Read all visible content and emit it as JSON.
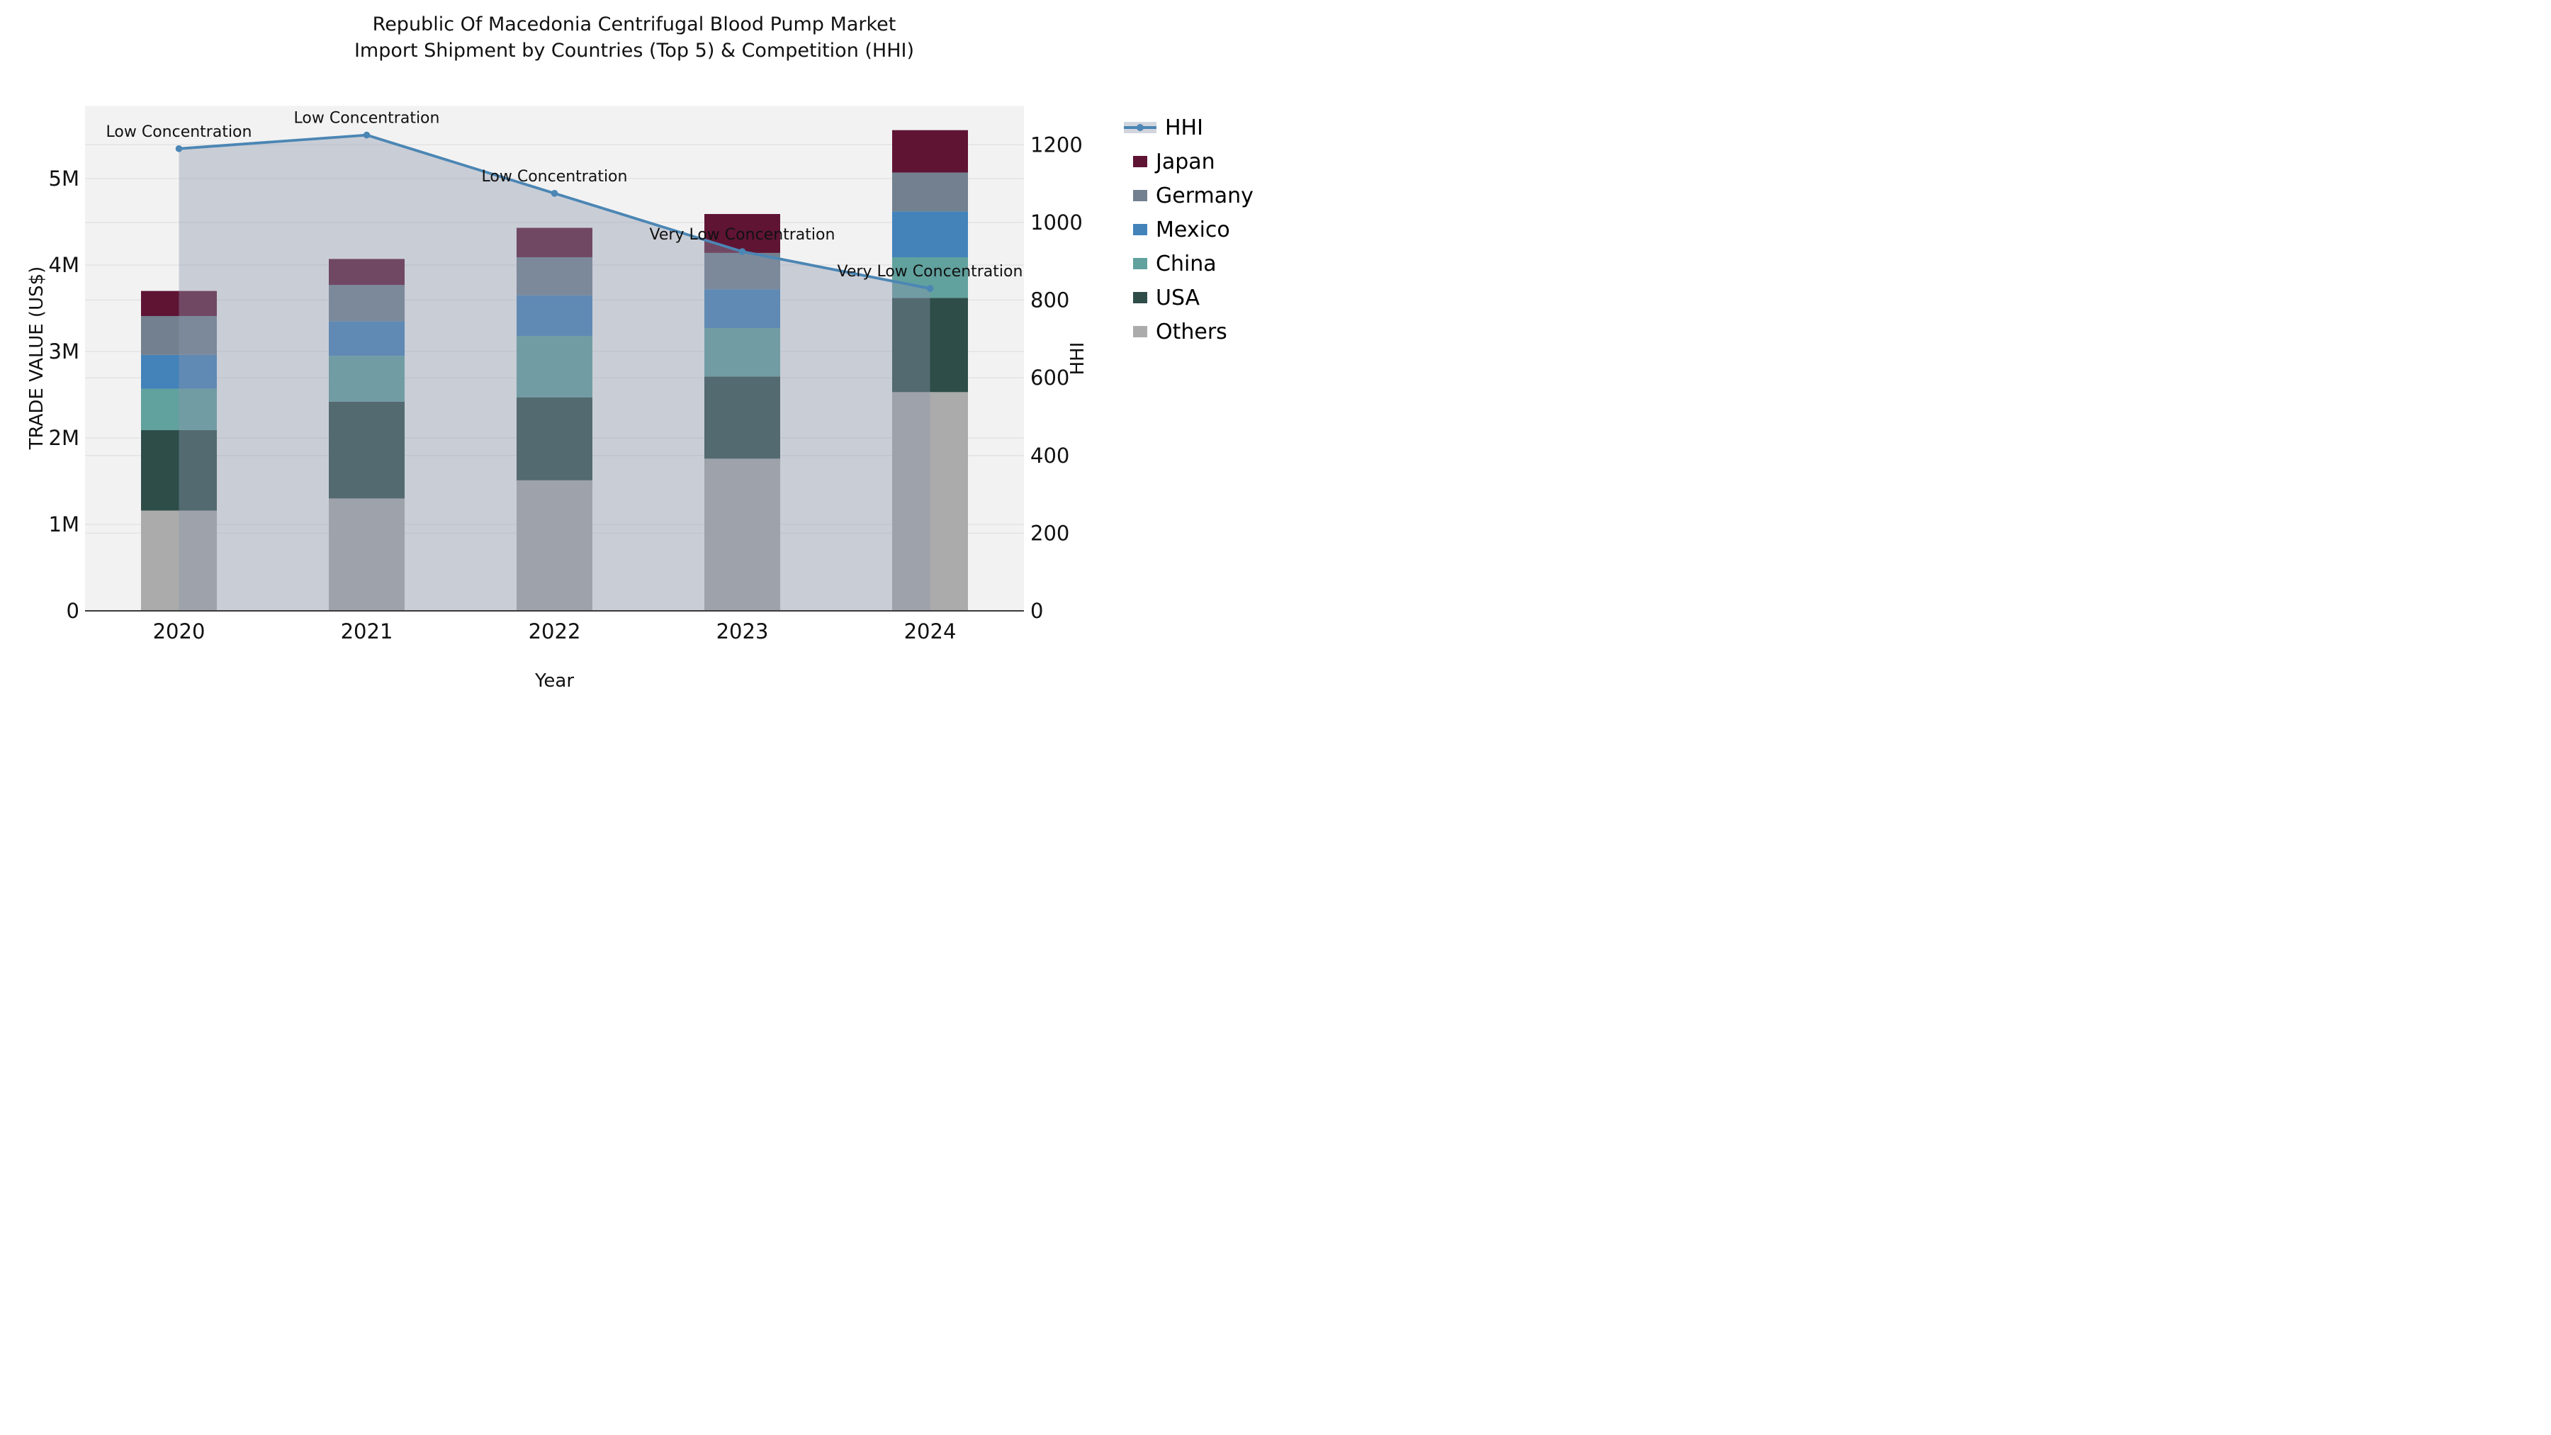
{
  "title": {
    "line1": "Republic Of Macedonia Centrifugal Blood Pump Market",
    "line2": "Import Shipment by Countries (Top 5) & Competition (HHI)"
  },
  "axes": {
    "x_label": "Year",
    "left_label": "TRADE VALUE (US$)",
    "right_label": "HHI",
    "left_ticks": [
      "0",
      "1M",
      "2M",
      "3M",
      "4M",
      "5M"
    ],
    "left_tick_values": [
      0,
      1000000,
      2000000,
      3000000,
      4000000,
      5000000
    ],
    "right_ticks": [
      "0",
      "200",
      "400",
      "600",
      "800",
      "1000",
      "1200"
    ],
    "right_tick_values": [
      0,
      200,
      400,
      600,
      800,
      1000,
      1200
    ]
  },
  "legend": {
    "items": [
      {
        "label": "HHI",
        "type": "line",
        "color": "#4b86b4"
      },
      {
        "label": "Japan",
        "type": "patch",
        "color": "#5f1434"
      },
      {
        "label": "Germany",
        "type": "patch",
        "color": "#72808f"
      },
      {
        "label": "Mexico",
        "type": "patch",
        "color": "#4383ba"
      },
      {
        "label": "China",
        "type": "patch",
        "color": "#61a19e"
      },
      {
        "label": "USA",
        "type": "patch",
        "color": "#2e4d49"
      },
      {
        "label": "Others",
        "type": "patch",
        "color": "#ababab"
      }
    ]
  },
  "chart_data": {
    "type": "bar",
    "stacked": true,
    "title": "Republic Of Macedonia Centrifugal Blood Pump Market\nImport Shipment by Countries (Top 5) & Competition (HHI)",
    "xlabel": "Year",
    "ylabel_left": "TRADE VALUE (US$)",
    "ylabel_right": "HHI",
    "categories": [
      "2020",
      "2021",
      "2022",
      "2023",
      "2024"
    ],
    "series": [
      {
        "name": "Others",
        "color": "#ababab",
        "values": [
          1160000,
          1300000,
          1510000,
          1760000,
          2530000
        ]
      },
      {
        "name": "USA",
        "color": "#2e4d49",
        "values": [
          930000,
          1120000,
          960000,
          950000,
          1090000
        ]
      },
      {
        "name": "China",
        "color": "#61a19e",
        "values": [
          480000,
          530000,
          710000,
          560000,
          470000
        ]
      },
      {
        "name": "Mexico",
        "color": "#4383ba",
        "values": [
          390000,
          400000,
          470000,
          450000,
          530000
        ]
      },
      {
        "name": "Germany",
        "color": "#72808f",
        "values": [
          450000,
          420000,
          440000,
          420000,
          450000
        ]
      },
      {
        "name": "Japan",
        "color": "#5f1434",
        "values": [
          290000,
          300000,
          340000,
          450000,
          490000
        ]
      }
    ],
    "bar_totals": [
      3700000,
      4070000,
      4430000,
      4590000,
      5560000
    ],
    "line_series": {
      "name": "HHI",
      "axis": "right",
      "color": "#4b86b4",
      "area_fill": "rgba(139,150,172,0.40)",
      "values": [
        1190,
        1225,
        1075,
        925,
        830
      ]
    },
    "annotations": [
      {
        "category": "2020",
        "text": "Low Concentration"
      },
      {
        "category": "2021",
        "text": "Low Concentration"
      },
      {
        "category": "2022",
        "text": "Low Concentration"
      },
      {
        "category": "2023",
        "text": "Very Low Concentration"
      },
      {
        "category": "2024",
        "text": "Very Low Concentration"
      }
    ],
    "left_axis_range": [
      0,
      5840000
    ],
    "right_axis_range": [
      0,
      1300
    ],
    "grid": true,
    "legend_position": "right",
    "plot_bg": "#f2f2f2",
    "grid_color": "#e3e3e3",
    "axis_line_color": "#3a3a3a",
    "text_color": "#111111"
  }
}
